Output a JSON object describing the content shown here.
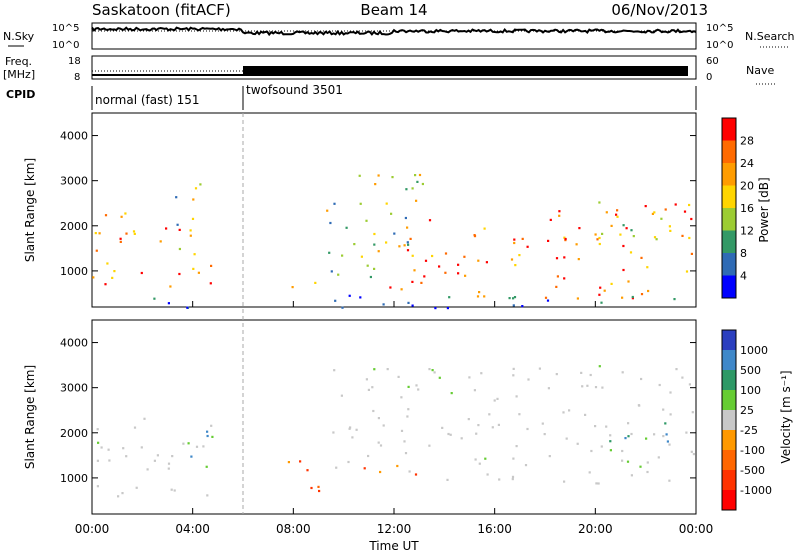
{
  "header": {
    "station": "Saskatoon (fitACF)",
    "beam": "Beam 14",
    "date": "06/Nov/2013"
  },
  "params": {
    "nsky_label": "N.Sky",
    "nsky_ticks": [
      "10^5",
      "10^0"
    ],
    "nsearch_label": "N.Search",
    "freq_label_1": "Freq.",
    "freq_label_2": "[MHz]",
    "freq_ticks": [
      "18",
      "8"
    ],
    "nave_label": "Nave",
    "nave_ticks": [
      "60",
      "0"
    ],
    "cpid_label": "CPID"
  },
  "cpid": [
    {
      "label": "normal (fast) 151",
      "start_hour": 0,
      "end_hour": 6
    },
    {
      "label": "twofsound 3501",
      "start_hour": 6,
      "end_hour": 24
    }
  ],
  "chart_data": [
    {
      "type": "heatmap",
      "name": "power",
      "ylabel": "Slant Range [km]",
      "xlim": [
        0,
        24
      ],
      "ylim": [
        200,
        4500
      ],
      "yticks": [
        "1000",
        "2000",
        "3000",
        "4000"
      ],
      "colorbar": {
        "label": "Power [dB]",
        "ticks": [
          "28",
          "24",
          "20",
          "16",
          "12",
          "8",
          "4"
        ],
        "colors": [
          "#ff0000",
          "#ff6a00",
          "#ff9c00",
          "#ffd500",
          "#9ccc33",
          "#339966",
          "#2f6bb5",
          "#0000ff"
        ]
      },
      "features": [
        {
          "t0": 0.0,
          "t1": 4.9,
          "r0": 650,
          "r1": 2400,
          "level": "high"
        },
        {
          "t0": 3.2,
          "t1": 4.3,
          "r0": 1400,
          "r1": 3400,
          "level": "medium"
        },
        {
          "t0": 7.6,
          "t1": 9.5,
          "r0": 650,
          "r1": 900,
          "level": "medium"
        },
        {
          "t0": 9.2,
          "t1": 13.5,
          "r0": 800,
          "r1": 3500,
          "level": "medium"
        },
        {
          "t0": 11.8,
          "t1": 24.0,
          "r0": 400,
          "r1": 2500,
          "level": "high"
        },
        {
          "t0": 20.0,
          "t1": 23.8,
          "r0": 1600,
          "r1": 2600,
          "level": "medium"
        },
        {
          "t0": 1.5,
          "t1": 24.0,
          "r0": 200,
          "r1": 500,
          "level": "low"
        }
      ]
    },
    {
      "type": "heatmap",
      "name": "velocity",
      "ylabel": "Slant Range [km]",
      "xlabel": "Time UT",
      "xlim": [
        0,
        24
      ],
      "ylim": [
        200,
        4500
      ],
      "yticks": [
        "1000",
        "2000",
        "3000",
        "4000"
      ],
      "xticks": [
        "00:00",
        "04:00",
        "08:00",
        "12:00",
        "16:00",
        "20:00",
        "00:00"
      ],
      "colorbar": {
        "label": "Velocity [m s⁻¹]",
        "ticks": [
          "1000",
          "500",
          "100",
          "25",
          "-25",
          "-100",
          "-500",
          "-1000"
        ],
        "colors": [
          "#2b3fbf",
          "#3f88c9",
          "#2e9966",
          "#66cc33",
          "#c8c8c8",
          "#ff9900",
          "#ff6600",
          "#ff3300",
          "#ff0000"
        ]
      },
      "features": [
        {
          "t0": 0.0,
          "t1": 4.9,
          "r0": 600,
          "r1": 2400,
          "velocity": "low"
        },
        {
          "t0": 3.8,
          "t1": 4.9,
          "r0": 900,
          "r1": 2300,
          "velocity": "positive"
        },
        {
          "t0": 7.5,
          "t1": 9.5,
          "r0": 650,
          "r1": 1500,
          "velocity": "negative"
        },
        {
          "t0": 10.0,
          "t1": 13.5,
          "r0": 1100,
          "r1": 1400,
          "velocity": "negative"
        },
        {
          "t0": 9.5,
          "t1": 24.0,
          "r0": 900,
          "r1": 3500,
          "velocity": "low"
        },
        {
          "t0": 20.5,
          "t1": 23.8,
          "r0": 1800,
          "r1": 2400,
          "velocity": "positive"
        }
      ]
    }
  ]
}
